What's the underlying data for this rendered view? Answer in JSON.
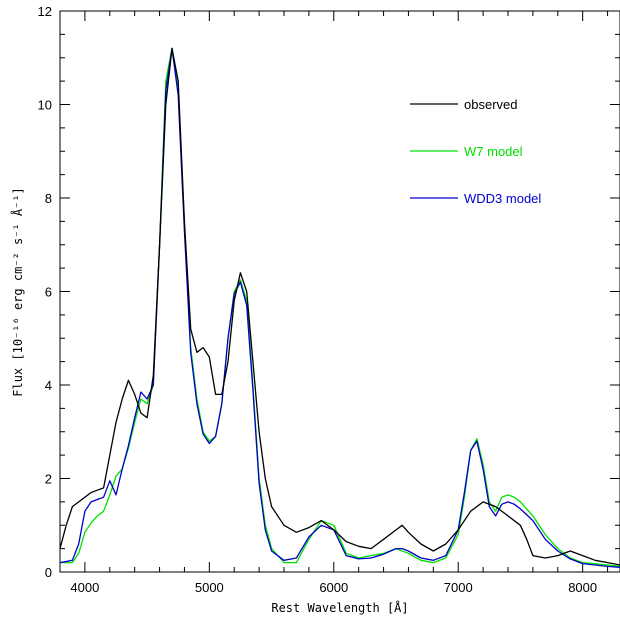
{
  "chart_data": {
    "type": "line",
    "title": "",
    "xlabel": "Rest Wavelength [Å]",
    "ylabel": "Flux [10⁻¹⁶ erg cm⁻² s⁻¹ Å⁻¹]",
    "xlim": [
      3800,
      8300
    ],
    "ylim": [
      0,
      12
    ],
    "x_ticks": [
      4000,
      5000,
      6000,
      7000,
      8000
    ],
    "y_ticks": [
      0,
      2,
      4,
      6,
      8,
      10,
      12
    ],
    "legend_position": "top-right",
    "series": [
      {
        "name": "observed",
        "color": "#000000",
        "x": [
          3800,
          3850,
          3900,
          3950,
          4000,
          4050,
          4100,
          4150,
          4200,
          4250,
          4300,
          4350,
          4400,
          4450,
          4500,
          4550,
          4600,
          4650,
          4700,
          4750,
          4800,
          4850,
          4900,
          4950,
          5000,
          5050,
          5100,
          5150,
          5200,
          5250,
          5300,
          5350,
          5400,
          5450,
          5500,
          5600,
          5700,
          5800,
          5900,
          6000,
          6100,
          6200,
          6300,
          6400,
          6500,
          6550,
          6600,
          6700,
          6800,
          6900,
          7000,
          7100,
          7200,
          7300,
          7400,
          7500,
          7550,
          7600,
          7700,
          7800,
          7900,
          8000,
          8100,
          8200,
          8300
        ],
        "y": [
          0.5,
          1.0,
          1.4,
          1.5,
          1.6,
          1.7,
          1.75,
          1.8,
          2.5,
          3.2,
          3.7,
          4.1,
          3.8,
          3.4,
          3.3,
          4.2,
          7.0,
          10.0,
          11.2,
          10.5,
          7.5,
          5.2,
          4.7,
          4.8,
          4.6,
          3.8,
          3.8,
          4.5,
          5.8,
          6.4,
          6.0,
          4.5,
          3.0,
          2.0,
          1.4,
          1.0,
          0.85,
          0.95,
          1.1,
          0.9,
          0.65,
          0.55,
          0.5,
          0.7,
          0.9,
          1.0,
          0.85,
          0.6,
          0.45,
          0.6,
          0.9,
          1.3,
          1.5,
          1.4,
          1.2,
          1.0,
          0.7,
          0.35,
          0.3,
          0.35,
          0.45,
          0.35,
          0.25,
          0.2,
          0.15
        ]
      },
      {
        "name": "W7 model",
        "color": "#00e000",
        "x": [
          3800,
          3900,
          3950,
          4000,
          4050,
          4100,
          4150,
          4200,
          4250,
          4300,
          4350,
          4400,
          4450,
          4500,
          4550,
          4600,
          4650,
          4700,
          4750,
          4800,
          4850,
          4900,
          4950,
          5000,
          5050,
          5100,
          5150,
          5200,
          5250,
          5300,
          5350,
          5400,
          5450,
          5500,
          5600,
          5700,
          5800,
          5900,
          6000,
          6100,
          6200,
          6300,
          6400,
          6500,
          6550,
          6600,
          6700,
          6800,
          6900,
          7000,
          7050,
          7100,
          7150,
          7200,
          7250,
          7300,
          7350,
          7400,
          7450,
          7500,
          7600,
          7700,
          7800,
          7900,
          8000,
          8100,
          8200,
          8300
        ],
        "y": [
          0.2,
          0.2,
          0.4,
          0.85,
          1.05,
          1.2,
          1.3,
          1.65,
          2.05,
          2.2,
          2.65,
          3.2,
          3.7,
          3.6,
          4.0,
          7.0,
          10.5,
          11.2,
          10.3,
          7.5,
          4.8,
          3.7,
          3.0,
          2.8,
          2.9,
          3.6,
          5.0,
          6.0,
          6.25,
          5.8,
          4.0,
          2.0,
          1.0,
          0.5,
          0.2,
          0.2,
          0.7,
          1.1,
          1.0,
          0.4,
          0.3,
          0.35,
          0.4,
          0.5,
          0.45,
          0.4,
          0.25,
          0.2,
          0.3,
          0.8,
          1.6,
          2.6,
          2.85,
          2.3,
          1.5,
          1.3,
          1.6,
          1.65,
          1.6,
          1.5,
          1.2,
          0.8,
          0.5,
          0.3,
          0.2,
          0.18,
          0.15,
          0.12
        ]
      },
      {
        "name": "WDD3 model",
        "color": "#0000cc",
        "x": [
          3800,
          3900,
          3950,
          4000,
          4050,
          4100,
          4150,
          4200,
          4250,
          4300,
          4350,
          4400,
          4450,
          4500,
          4550,
          4600,
          4650,
          4700,
          4750,
          4800,
          4850,
          4900,
          4950,
          5000,
          5050,
          5100,
          5150,
          5200,
          5250,
          5300,
          5350,
          5400,
          5450,
          5500,
          5600,
          5700,
          5800,
          5900,
          6000,
          6100,
          6200,
          6300,
          6400,
          6500,
          6550,
          6600,
          6700,
          6800,
          6900,
          7000,
          7050,
          7100,
          7150,
          7200,
          7250,
          7300,
          7350,
          7400,
          7450,
          7500,
          7600,
          7700,
          7800,
          7900,
          8000,
          8100,
          8200,
          8300
        ],
        "y": [
          0.2,
          0.25,
          0.6,
          1.3,
          1.5,
          1.55,
          1.6,
          1.95,
          1.65,
          2.2,
          2.7,
          3.3,
          3.85,
          3.7,
          4.0,
          7.0,
          10.3,
          11.2,
          10.2,
          7.3,
          4.7,
          3.6,
          2.95,
          2.75,
          2.9,
          3.6,
          5.0,
          5.95,
          6.2,
          5.7,
          3.9,
          1.9,
          0.9,
          0.45,
          0.25,
          0.3,
          0.75,
          1.0,
          0.9,
          0.35,
          0.28,
          0.3,
          0.38,
          0.5,
          0.5,
          0.45,
          0.3,
          0.25,
          0.35,
          0.9,
          1.7,
          2.6,
          2.8,
          2.2,
          1.4,
          1.2,
          1.45,
          1.5,
          1.45,
          1.35,
          1.1,
          0.7,
          0.45,
          0.28,
          0.18,
          0.15,
          0.12,
          0.1
        ]
      }
    ]
  }
}
